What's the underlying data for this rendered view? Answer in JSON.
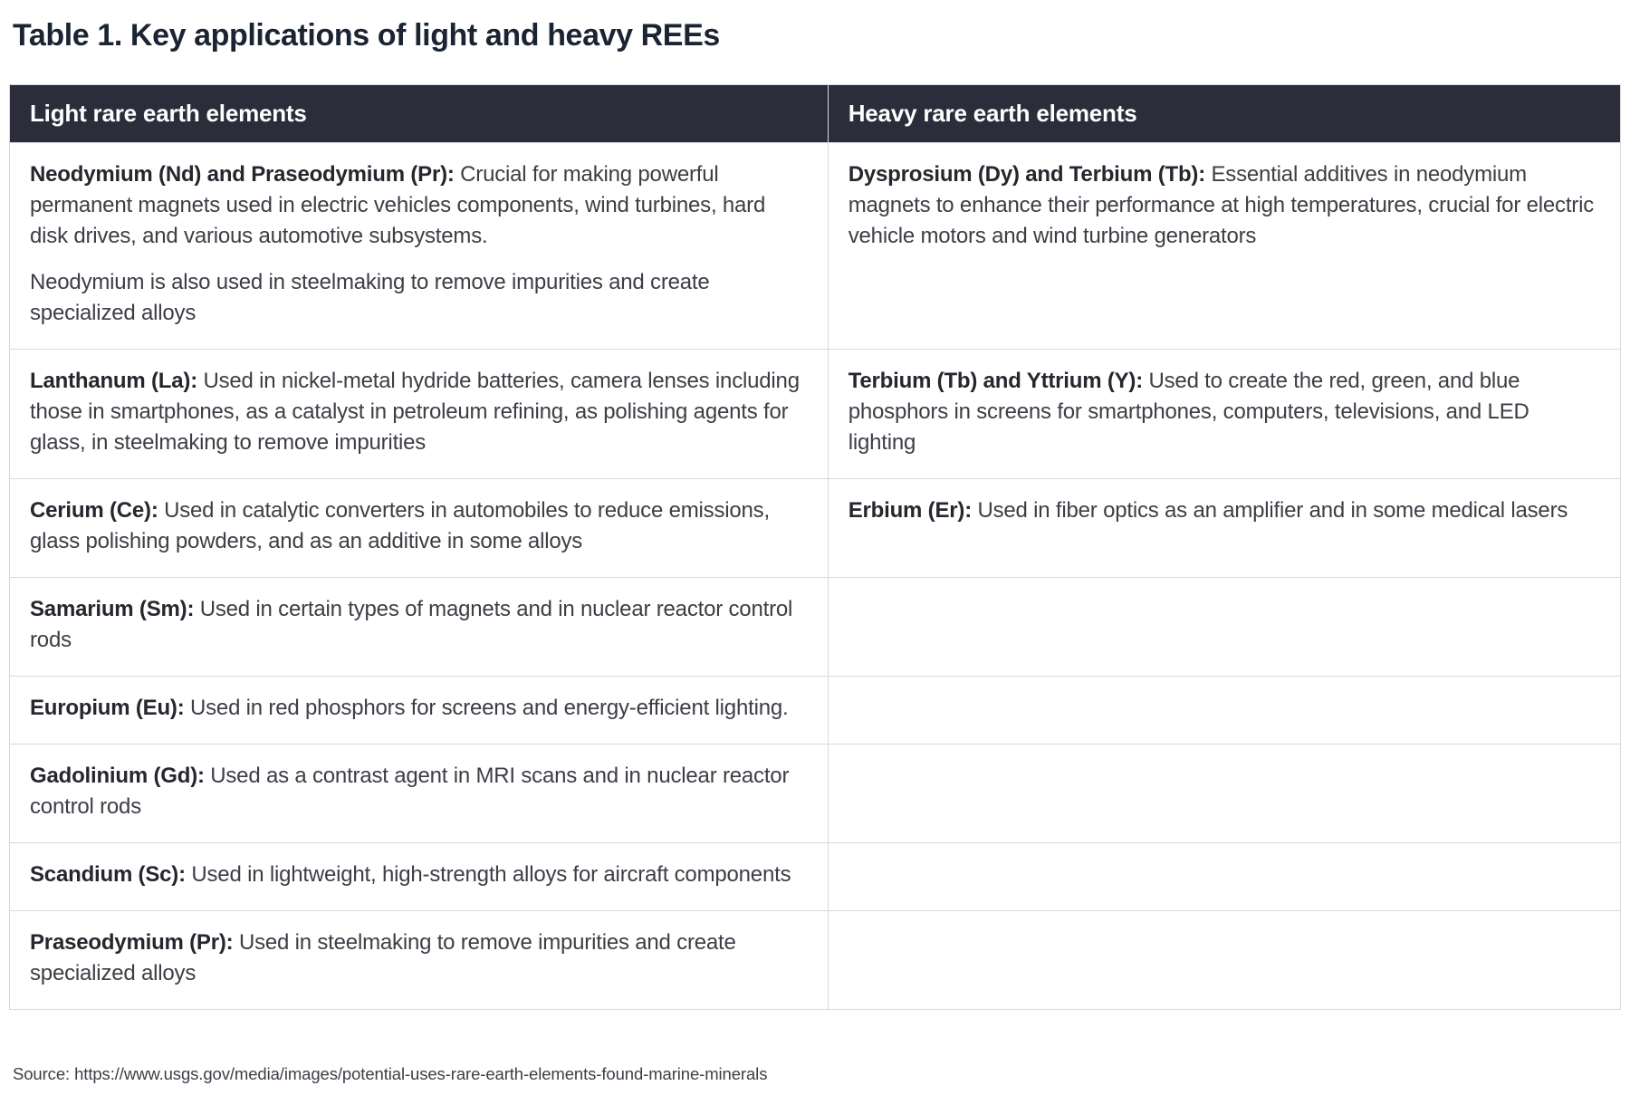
{
  "title": "Table 1. Key applications of light and heavy REEs",
  "table": {
    "headers": [
      "Light rare earth elements",
      "Heavy rare earth elements"
    ],
    "rows": [
      {
        "light": [
          {
            "lead": "Neodymium (Nd) and Praseodymium (Pr):",
            "text": "Crucial for making powerful permanent magnets used in electric vehicles components, wind turbines, hard disk drives, and various automotive subsystems."
          },
          {
            "lead": "",
            "text": "Neodymium is also used in steelmaking to remove impurities and create specialized alloys"
          }
        ],
        "heavy": [
          {
            "lead": "Dysprosium (Dy) and Terbium (Tb):",
            "text": "Essential additives in neodymium magnets to enhance their performance at high temperatures, crucial for electric vehicle motors and wind turbine generators"
          }
        ]
      },
      {
        "light": [
          {
            "lead": "Lanthanum (La):",
            "text": "Used in nickel-metal hydride batteries, camera lenses including those in smartphones, as a catalyst in petroleum refining, as polishing agents for glass, in steelmaking to remove impurities"
          }
        ],
        "heavy": [
          {
            "lead": "Terbium (Tb) and Yttrium (Y):",
            "text": "Used to create the red, green, and blue phosphors in screens for smartphones, computers, televisions, and LED lighting"
          }
        ]
      },
      {
        "light": [
          {
            "lead": "Cerium (Ce):",
            "text": "Used in catalytic converters in automobiles to reduce emissions, glass polishing powders, and as an additive in some alloys"
          }
        ],
        "heavy": [
          {
            "lead": "Erbium (Er):",
            "text": "Used in fiber optics as an amplifier and in some medical lasers"
          }
        ]
      },
      {
        "light": [
          {
            "lead": "Samarium (Sm):",
            "text": "Used in certain types of magnets and in nuclear reactor control rods"
          }
        ],
        "heavy": []
      },
      {
        "light": [
          {
            "lead": "Europium (Eu):",
            "text": "Used in red phosphors for screens and energy-efficient lighting."
          }
        ],
        "heavy": []
      },
      {
        "light": [
          {
            "lead": "Gadolinium (Gd):",
            "text": "Used as a contrast agent in MRI scans and in nuclear reactor control rods"
          }
        ],
        "heavy": []
      },
      {
        "light": [
          {
            "lead": "Scandium (Sc):",
            "text": "Used in lightweight, high-strength alloys for aircraft components"
          }
        ],
        "heavy": []
      },
      {
        "light": [
          {
            "lead": "Praseodymium (Pr):",
            "text": "Used in steelmaking to remove impurities and create specialized alloys"
          }
        ],
        "heavy": []
      }
    ]
  },
  "source": "Source: https://www.usgs.gov/media/images/potential-uses-rare-earth-elements-found-marine-minerals",
  "colors": {
    "header_bg": "#2b2d3a",
    "header_text": "#ffffff",
    "title_text": "#1b2433",
    "body_text": "#3d3d46",
    "lead_text": "#26262e",
    "border": "#d8d8e2",
    "page_bg": "#ffffff"
  }
}
